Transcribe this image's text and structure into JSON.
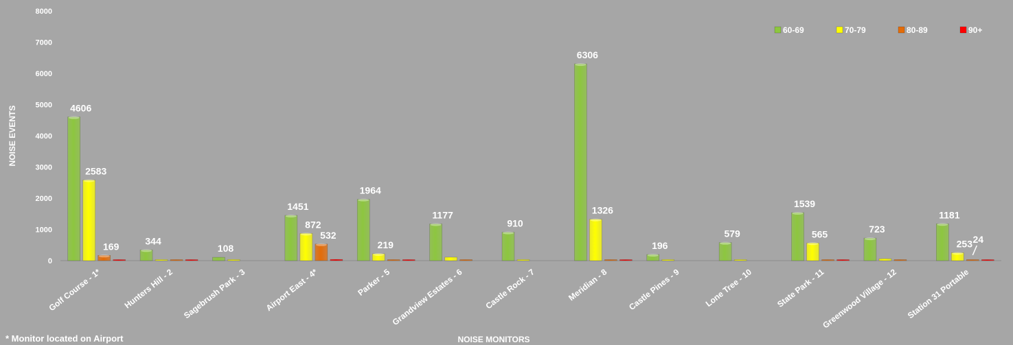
{
  "chart_data": {
    "type": "bar",
    "xlabel": "NOISE MONITORS",
    "ylabel": "NOISE EVENTS",
    "ylim": [
      0,
      8000
    ],
    "yticks": [
      0,
      1000,
      2000,
      3000,
      4000,
      5000,
      6000,
      7000,
      8000
    ],
    "grid": false,
    "legend_position": "top-right",
    "categories": [
      "Golf Course - 1*",
      "Hunters Hill - 2",
      "Sagebrush Park - 3",
      "Airport East - 4*",
      "Parker - 5",
      "Grandview Estates - 6",
      "Castle Rock - 7",
      "Meridian - 8",
      "Castle Pines - 9",
      "Lone Tree - 10",
      "State Park - 11",
      "Greenwood Village - 12",
      "Station 31 Portable"
    ],
    "series": [
      {
        "name": "60-69",
        "color": "#8dc63f",
        "values": [
          4606,
          344,
          108,
          1451,
          1964,
          1177,
          910,
          6306,
          196,
          579,
          1539,
          723,
          1181
        ]
      },
      {
        "name": "70-79",
        "color": "#ffff00",
        "values": [
          2583,
          10,
          5,
          872,
          219,
          110,
          20,
          1326,
          10,
          15,
          565,
          60,
          253
        ]
      },
      {
        "name": "80-89",
        "color": "#e36c09",
        "values": [
          169,
          2,
          0,
          532,
          5,
          3,
          0,
          10,
          0,
          0,
          10,
          2,
          24
        ]
      },
      {
        "name": "90+",
        "color": "#ff0000",
        "values": [
          10,
          1,
          0,
          40,
          1,
          0,
          0,
          5,
          0,
          0,
          5,
          0,
          2
        ]
      }
    ],
    "data_labels": [
      {
        "category_index": 0,
        "series_index": 0,
        "text": "4606"
      },
      {
        "category_index": 0,
        "series_index": 1,
        "text": "2583"
      },
      {
        "category_index": 0,
        "series_index": 2,
        "text": "169"
      },
      {
        "category_index": 1,
        "series_index": 0,
        "text": "344"
      },
      {
        "category_index": 2,
        "series_index": 0,
        "text": "108"
      },
      {
        "category_index": 3,
        "series_index": 0,
        "text": "1451"
      },
      {
        "category_index": 3,
        "series_index": 1,
        "text": "872"
      },
      {
        "category_index": 3,
        "series_index": 2,
        "text": "532"
      },
      {
        "category_index": 4,
        "series_index": 0,
        "text": "1964"
      },
      {
        "category_index": 4,
        "series_index": 1,
        "text": "219"
      },
      {
        "category_index": 5,
        "series_index": 0,
        "text": "1177"
      },
      {
        "category_index": 6,
        "series_index": 0,
        "text": "910"
      },
      {
        "category_index": 7,
        "series_index": 0,
        "text": "6306"
      },
      {
        "category_index": 7,
        "series_index": 1,
        "text": "1326"
      },
      {
        "category_index": 8,
        "series_index": 0,
        "text": "196"
      },
      {
        "category_index": 9,
        "series_index": 0,
        "text": "579"
      },
      {
        "category_index": 10,
        "series_index": 0,
        "text": "1539"
      },
      {
        "category_index": 10,
        "series_index": 1,
        "text": "565"
      },
      {
        "category_index": 11,
        "series_index": 0,
        "text": "723"
      },
      {
        "category_index": 12,
        "series_index": 0,
        "text": "1181"
      },
      {
        "category_index": 12,
        "series_index": 1,
        "text": "253"
      },
      {
        "category_index": 12,
        "series_index": 2,
        "text": "24"
      }
    ]
  },
  "footnote": "* Monitor located on Airport"
}
